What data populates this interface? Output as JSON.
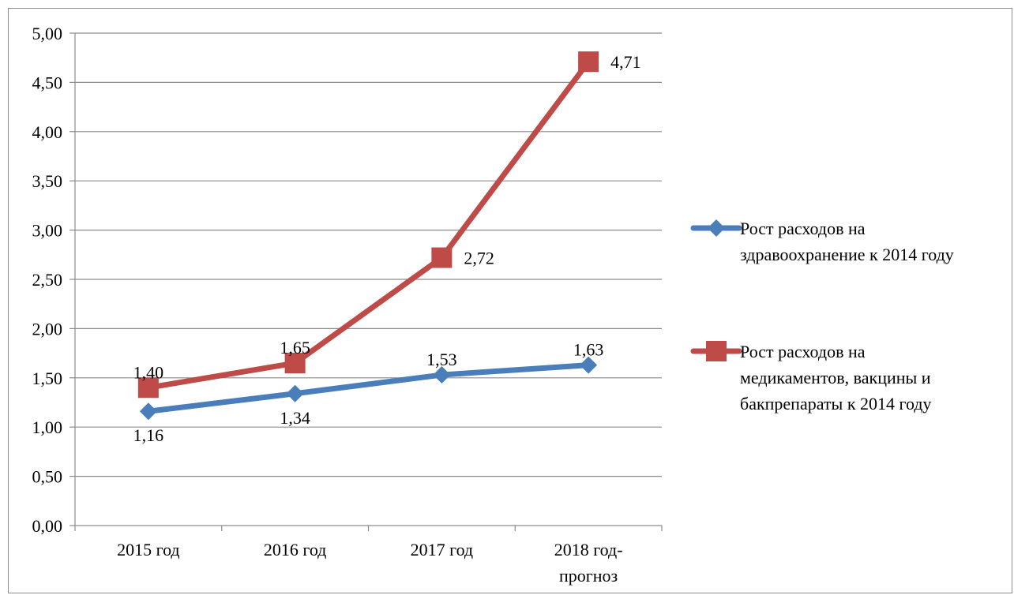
{
  "chart_data": {
    "type": "line",
    "categories": [
      [
        "2015 год"
      ],
      [
        "2016 год"
      ],
      [
        "2017 год"
      ],
      [
        "2018 год-",
        "прогноз"
      ]
    ],
    "ylim": [
      0,
      5
    ],
    "y_ticks": [
      "0,00",
      "0,50",
      "1,00",
      "1,50",
      "2,00",
      "2,50",
      "3,00",
      "3,50",
      "4,00",
      "4,50",
      "5,00"
    ],
    "grid": "horizontal",
    "legend_position": "right",
    "series": [
      {
        "name": [
          "Рост расходов на",
          "здравоохранение к 2014 году"
        ],
        "values": [
          1.16,
          1.34,
          1.53,
          1.63
        ],
        "labels": [
          "1,16",
          "1,34",
          "1,53",
          "1,63"
        ],
        "label_positions": [
          "below",
          "below",
          "above",
          "above"
        ],
        "color": "#4a7ebb",
        "marker": "diamond"
      },
      {
        "name": [
          "Рост расходов на",
          "медикаментов, вакцины и",
          "бакпрепараты к 2014 году"
        ],
        "values": [
          1.4,
          1.65,
          2.72,
          4.71
        ],
        "labels": [
          "1,40",
          "1,65",
          "2,72",
          "4,71"
        ],
        "label_positions": [
          "above",
          "above",
          "right",
          "right"
        ],
        "color": "#be4b48",
        "marker": "square"
      }
    ]
  }
}
